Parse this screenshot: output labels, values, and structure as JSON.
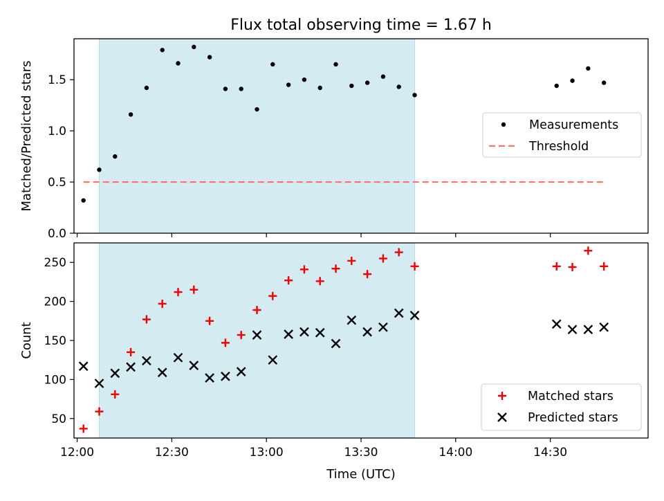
{
  "title": "Flux total observing time = 1.67 h",
  "x_axis": {
    "label": "Time (UTC)",
    "ticks": [
      "12:00",
      "12:30",
      "13:00",
      "13:30",
      "14:00",
      "14:30"
    ]
  },
  "chart_data": [
    {
      "type": "scatter",
      "panel": "top",
      "ylabel": "Matched/Predicted stars",
      "ylim": [
        0,
        1.9
      ],
      "yticks": [
        "0.0",
        "0.5",
        "1.0",
        "1.5"
      ],
      "xlim": [
        "11:59",
        "15:01"
      ],
      "shaded_interval": {
        "start": "12:07",
        "end": "13:47",
        "color": "#d4ebf1"
      },
      "legend_position": "center-right",
      "series": [
        {
          "name": "Measurements",
          "marker": "dot",
          "color": "#000000",
          "points": [
            [
              "12:02",
              0.32
            ],
            [
              "12:07",
              0.62
            ],
            [
              "12:12",
              0.75
            ],
            [
              "12:17",
              1.16
            ],
            [
              "12:22",
              1.42
            ],
            [
              "12:27",
              1.79
            ],
            [
              "12:32",
              1.66
            ],
            [
              "12:37",
              1.82
            ],
            [
              "12:42",
              1.72
            ],
            [
              "12:47",
              1.41
            ],
            [
              "12:52",
              1.41
            ],
            [
              "12:57",
              1.21
            ],
            [
              "13:02",
              1.65
            ],
            [
              "13:07",
              1.45
            ],
            [
              "13:12",
              1.5
            ],
            [
              "13:17",
              1.42
            ],
            [
              "13:22",
              1.65
            ],
            [
              "13:27",
              1.44
            ],
            [
              "13:32",
              1.47
            ],
            [
              "13:37",
              1.53
            ],
            [
              "13:42",
              1.43
            ],
            [
              "13:47",
              1.35
            ],
            [
              "14:32",
              1.44
            ],
            [
              "14:37",
              1.49
            ],
            [
              "14:42",
              1.61
            ],
            [
              "14:47",
              1.47
            ]
          ]
        },
        {
          "name": "Threshold",
          "marker": "dashed-line",
          "color": "#ff7070",
          "points": [
            [
              "12:02",
              0.5
            ],
            [
              "14:47",
              0.5
            ]
          ]
        }
      ]
    },
    {
      "type": "scatter",
      "panel": "bottom",
      "ylabel": "Count",
      "ylim": [
        25,
        275
      ],
      "yticks": [
        "50",
        "100",
        "150",
        "200",
        "250"
      ],
      "xlim": [
        "11:59",
        "15:01"
      ],
      "shaded_interval": {
        "start": "12:07",
        "end": "13:47",
        "color": "#d4ebf1"
      },
      "legend_position": "bottom-right",
      "series": [
        {
          "name": "Matched stars",
          "marker": "plus",
          "color": "#ee0000",
          "points": [
            [
              "12:02",
              37
            ],
            [
              "12:07",
              59
            ],
            [
              "12:12",
              81
            ],
            [
              "12:17",
              135
            ],
            [
              "12:22",
              177
            ],
            [
              "12:27",
              197
            ],
            [
              "12:32",
              212
            ],
            [
              "12:37",
              215
            ],
            [
              "12:42",
              175
            ],
            [
              "12:47",
              147
            ],
            [
              "12:52",
              157
            ],
            [
              "12:57",
              189
            ],
            [
              "13:02",
              207
            ],
            [
              "13:07",
              227
            ],
            [
              "13:12",
              241
            ],
            [
              "13:17",
              226
            ],
            [
              "13:22",
              242
            ],
            [
              "13:27",
              252
            ],
            [
              "13:32",
              235
            ],
            [
              "13:37",
              255
            ],
            [
              "13:42",
              263
            ],
            [
              "13:47",
              245
            ],
            [
              "14:32",
              245
            ],
            [
              "14:37",
              244
            ],
            [
              "14:42",
              265
            ],
            [
              "14:47",
              245
            ]
          ]
        },
        {
          "name": "Predicted stars",
          "marker": "x",
          "color": "#000000",
          "points": [
            [
              "12:02",
              117
            ],
            [
              "12:07",
              95
            ],
            [
              "12:12",
              108
            ],
            [
              "12:17",
              116
            ],
            [
              "12:22",
              124
            ],
            [
              "12:27",
              109
            ],
            [
              "12:32",
              128
            ],
            [
              "12:37",
              118
            ],
            [
              "12:42",
              102
            ],
            [
              "12:47",
              104
            ],
            [
              "12:52",
              110
            ],
            [
              "12:57",
              157
            ],
            [
              "13:02",
              125
            ],
            [
              "13:07",
              158
            ],
            [
              "13:12",
              161
            ],
            [
              "13:17",
              160
            ],
            [
              "13:22",
              146
            ],
            [
              "13:27",
              176
            ],
            [
              "13:32",
              161
            ],
            [
              "13:37",
              167
            ],
            [
              "13:42",
              185
            ],
            [
              "13:47",
              182
            ],
            [
              "14:32",
              171
            ],
            [
              "14:37",
              164
            ],
            [
              "14:42",
              164
            ],
            [
              "14:47",
              167
            ]
          ]
        }
      ]
    }
  ]
}
